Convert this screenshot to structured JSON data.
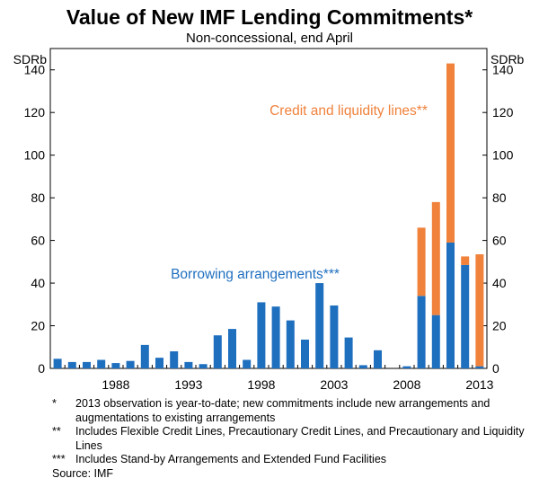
{
  "chart_data": {
    "type": "bar",
    "title": "Value of New IMF Lending Commitments*",
    "subtitle": "Non-concessional, end April",
    "ylabel_left": "SDRb",
    "ylabel_right": "SDRb",
    "ylim": [
      0,
      150
    ],
    "yticks": [
      0,
      20,
      40,
      60,
      80,
      100,
      120,
      140
    ],
    "xticks": [
      "1988",
      "1993",
      "1998",
      "2003",
      "2008",
      "2013"
    ],
    "categories": [
      "1984",
      "1985",
      "1986",
      "1987",
      "1988",
      "1989",
      "1990",
      "1991",
      "1992",
      "1993",
      "1994",
      "1995",
      "1996",
      "1997",
      "1998",
      "1999",
      "2000",
      "2001",
      "2002",
      "2003",
      "2004",
      "2005",
      "2006",
      "2007",
      "2008",
      "2009",
      "2010",
      "2011",
      "2012",
      "2013"
    ],
    "series": [
      {
        "name": "Borrowing arrangements***",
        "color": "#1f6fbf",
        "values": [
          4.5,
          3.0,
          3.0,
          4.0,
          2.5,
          3.5,
          11.0,
          5.0,
          8.0,
          3.0,
          2.0,
          15.5,
          18.5,
          4.0,
          31.0,
          29.0,
          22.5,
          13.5,
          40.0,
          29.5,
          14.5,
          1.5,
          8.5,
          0.0,
          1.0,
          34.0,
          25.0,
          59.0,
          48.5,
          1.0
        ]
      },
      {
        "name": "Credit and liquidity lines**",
        "color": "#f0823c",
        "values": [
          0,
          0,
          0,
          0,
          0,
          0,
          0,
          0,
          0,
          0,
          0,
          0,
          0,
          0,
          0,
          0,
          0,
          0,
          0,
          0,
          0,
          0,
          0,
          0,
          0,
          32.0,
          53.0,
          84.0,
          4.0,
          52.5
        ]
      }
    ]
  },
  "labels": {
    "credit_label": "Credit and liquidity lines**",
    "borrowing_label": "Borrowing arrangements***"
  },
  "notes": [
    {
      "marker": "*",
      "text": "2013 observation is year-to-date; new commitments include new arrangements and augmentations to existing arrangements"
    },
    {
      "marker": "**",
      "text": "Includes Flexible Credit Lines, Precautionary Credit Lines, and Precautionary and Liquidity Lines"
    },
    {
      "marker": "***",
      "text": "Includes Stand-by Arrangements and Extended Fund Facilities"
    }
  ],
  "source": "Source: IMF"
}
